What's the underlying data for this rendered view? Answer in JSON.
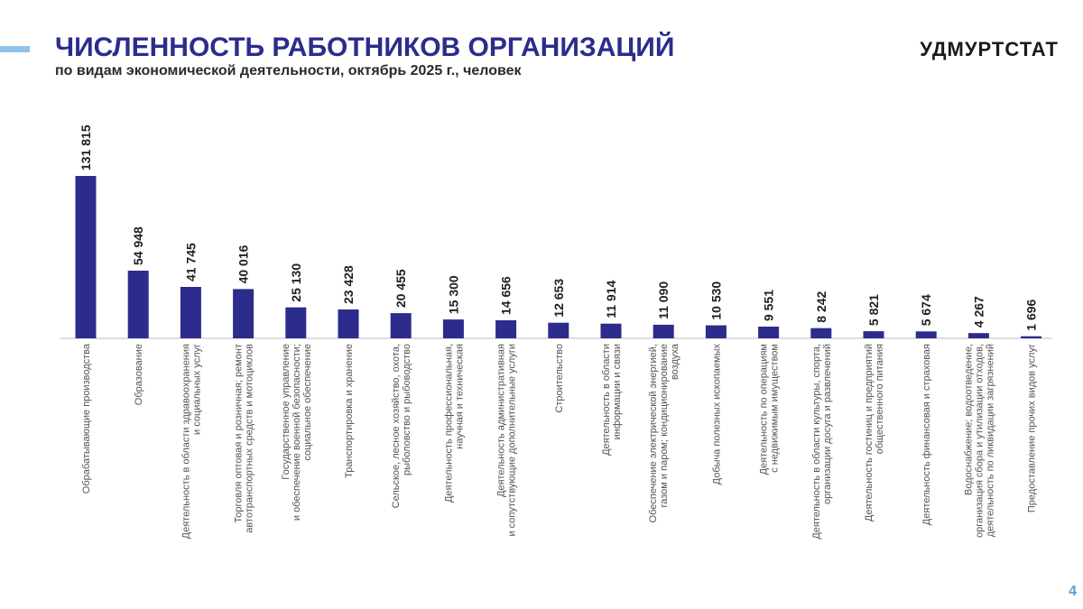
{
  "header": {
    "title": "ЧИСЛЕННОСТЬ РАБОТНИКОВ ОРГАНИЗАЦИЙ",
    "subtitle": "по видам экономической деятельности, октябрь 2025 г., человек",
    "brand": "УДМУРТСТАТ",
    "page_number": "4"
  },
  "colors": {
    "title": "#2b2c8c",
    "bar": "#2b2c8c",
    "accent": "#8fc3ea",
    "page_number": "#5aa0d8"
  },
  "chart_data": {
    "type": "bar",
    "orientation": "vertical",
    "title": "ЧИСЛЕННОСТЬ РАБОТНИКОВ ОРГАНИЗАЦИЙ",
    "subtitle": "по видам экономической деятельности, октябрь 2025 г., человек",
    "xlabel": "",
    "ylabel": "",
    "grid": false,
    "legend": "none",
    "ylim": [
      0,
      131815
    ],
    "categories": [
      [
        "Обрабатывающие производства"
      ],
      [
        "Образование"
      ],
      [
        "Деятельность в области здравоохранения",
        "и социальных услуг"
      ],
      [
        "Торговля оптовая и розничная; ремонт",
        "автотранспортных средств и мотоциклов"
      ],
      [
        "Государственное управление",
        "и обеспечение военной безопасности;",
        "социальное обеспечение"
      ],
      [
        "Транспортировка и хранение"
      ],
      [
        "Сельское, лесное хозяйство, охота,",
        "рыболовство и рыбоводство"
      ],
      [
        "Деятельность профессиональная,",
        "научная и техническая"
      ],
      [
        "Деятельность административная",
        "и сопутствующие дополнительные услуги"
      ],
      [
        "Строительство"
      ],
      [
        "Деятельность в области",
        "информации и связи"
      ],
      [
        "Обеспечение электрической энергией,",
        "газом и паром; кондиционирование",
        "воздуха"
      ],
      [
        "Добыча полезных ископаемых"
      ],
      [
        "Деятельность по операциям",
        "с недвижимым имуществом"
      ],
      [
        "Деятельность в области культуры, спорта,",
        "организации досуга и развлечений"
      ],
      [
        "Деятельность гостиниц и предприятий",
        "общественного питания"
      ],
      [
        "Деятельность финансовая и страховая"
      ],
      [
        "Водоснабжение; водоотведение,",
        "организация сбора и утилизации отходов,",
        "деятельность по ликвидации загрязнений"
      ],
      [
        "Предоставление прочих видов услуг"
      ]
    ],
    "values": [
      131815,
      54948,
      41745,
      40016,
      25130,
      23428,
      20455,
      15300,
      14656,
      12653,
      11914,
      11090,
      10530,
      9551,
      8242,
      5821,
      5674,
      4267,
      1696
    ],
    "value_labels": [
      "131 815",
      "54 948",
      "41 745",
      "40 016",
      "25 130",
      "23 428",
      "20 455",
      "15 300",
      "14 656",
      "12 653",
      "11 914",
      "11 090",
      "10 530",
      "9 551",
      "8 242",
      "5 821",
      "5 674",
      "4 267",
      "1 696"
    ]
  }
}
